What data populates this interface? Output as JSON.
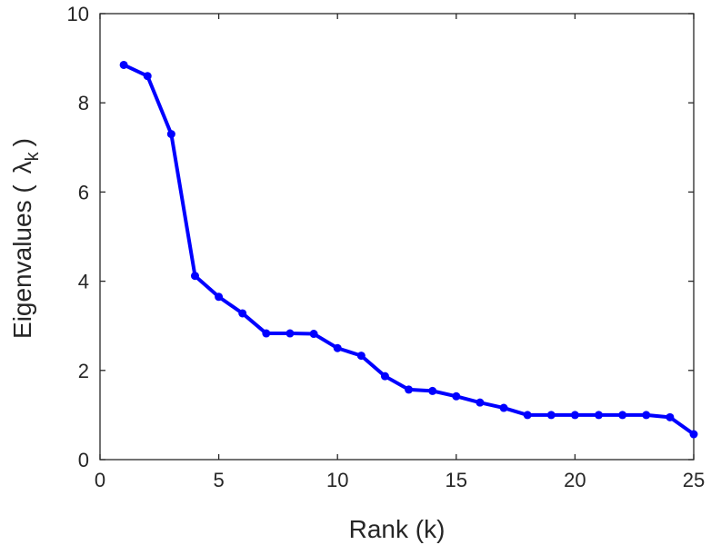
{
  "chart_data": {
    "type": "line",
    "xlabel": "Rank (k)",
    "ylabel": "Eigenvalues (λk)",
    "ylabel_parts": {
      "prefix": "Eigenvalues (",
      "symbol": "λ",
      "subscript": "k",
      "suffix": ")"
    },
    "xlim": [
      0,
      25
    ],
    "ylim": [
      0,
      10
    ],
    "x_ticks": [
      0,
      5,
      10,
      15,
      20,
      25
    ],
    "y_ticks": [
      0,
      2,
      4,
      6,
      8,
      10
    ],
    "x_tick_labels": [
      "0",
      "5",
      "10",
      "15",
      "20",
      "25"
    ],
    "y_tick_labels": [
      "0",
      "2",
      "4",
      "6",
      "8",
      "10"
    ],
    "grid": false,
    "series": [
      {
        "color": "#0000ff",
        "marker": "circle",
        "x": [
          1,
          2,
          3,
          4,
          5,
          6,
          7,
          8,
          9,
          10,
          11,
          12,
          13,
          14,
          15,
          16,
          17,
          18,
          19,
          20,
          21,
          22,
          23,
          24,
          25
        ],
        "y": [
          8.85,
          8.6,
          7.3,
          4.12,
          3.65,
          3.28,
          2.83,
          2.83,
          2.82,
          2.5,
          2.33,
          1.87,
          1.57,
          1.54,
          1.42,
          1.28,
          1.16,
          1.0,
          1.0,
          1.0,
          1.0,
          1.0,
          1.0,
          0.95,
          0.57
        ]
      }
    ]
  }
}
